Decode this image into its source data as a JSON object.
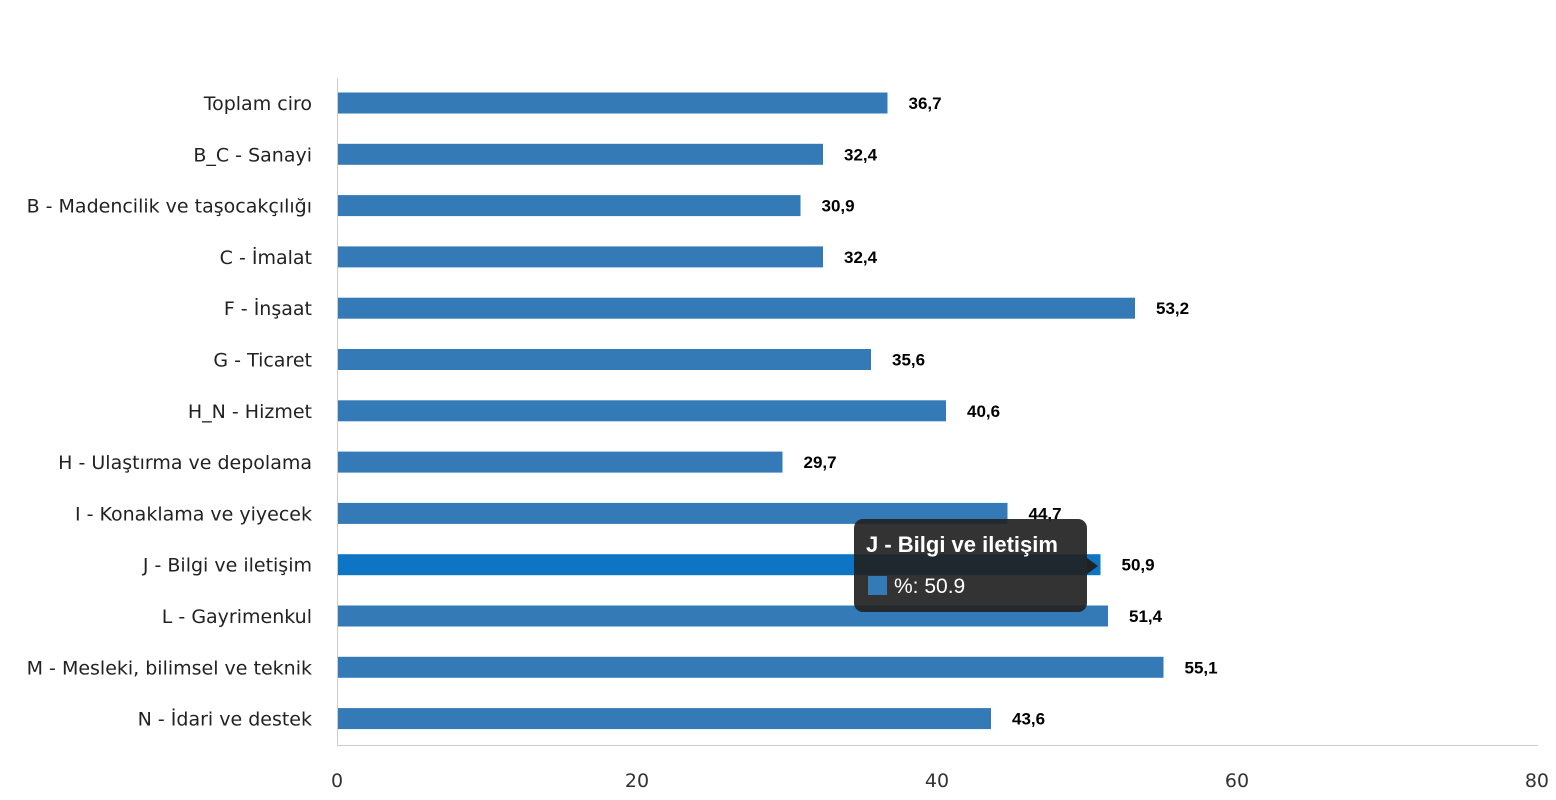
{
  "chart_data": {
    "type": "bar",
    "orientation": "horizontal",
    "categories": [
      "Toplam ciro",
      "B_C - Sanayi",
      "B - Madencilik ve taşocakçılığı",
      "C - İmalat",
      "F - İnşaat",
      "G - Ticaret",
      "H_N - Hizmet",
      "H - Ulaştırma ve depolama",
      "I - Konaklama ve yiyecek",
      "J - Bilgi ve iletişim",
      "L - Gayrimenkul",
      "M - Mesleki, bilimsel ve teknik",
      "N - İdari ve destek"
    ],
    "values": [
      36.7,
      32.4,
      30.9,
      32.4,
      53.2,
      35.6,
      40.6,
      29.7,
      44.7,
      50.9,
      51.4,
      55.1,
      43.6
    ],
    "value_labels": [
      "36,7",
      "32,4",
      "30,9",
      "32,4",
      "53,2",
      "35,6",
      "40,6",
      "29,7",
      "44,7",
      "50,9",
      "51,4",
      "55,1",
      "43,6"
    ],
    "xlim": [
      0,
      80
    ],
    "x_ticks": [
      0,
      20,
      40,
      60,
      80
    ],
    "grid": false,
    "bar_color": "#337ab7",
    "highlight_color": "#0e74c4",
    "highlight_index": 9
  },
  "tooltip": {
    "title": "J - Bilgi ve iletişim",
    "text": "%: 50.9",
    "swatch_color": "#337ab7",
    "background": "#222222"
  }
}
